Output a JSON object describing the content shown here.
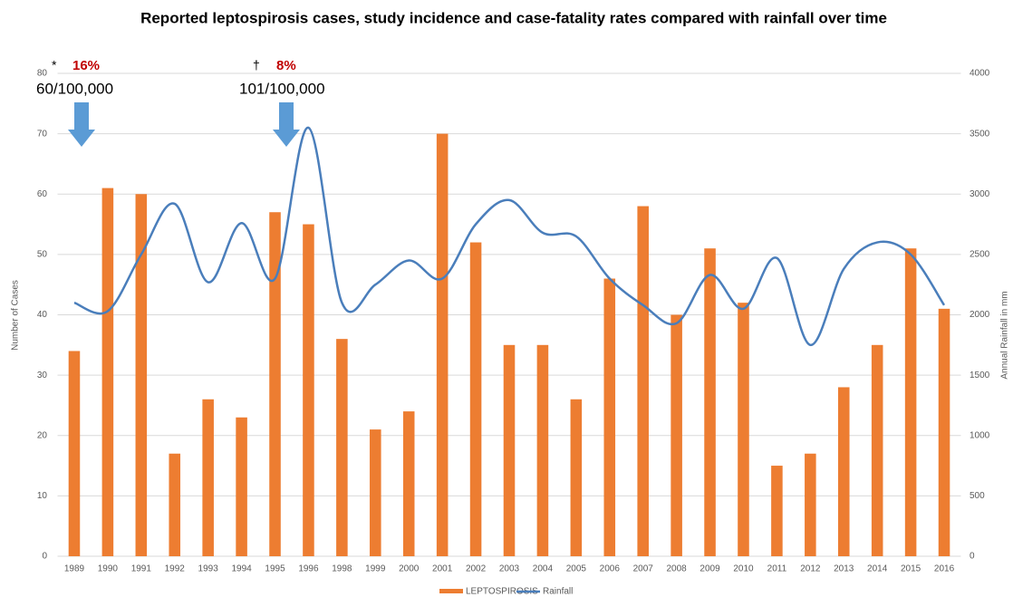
{
  "chart_data": {
    "type": "bar",
    "title": "Reported leptospirosis cases, study incidence and case-fatality rates compared with rainfall over time",
    "ylabel": "Number of Cases",
    "y2label": "Annual Rainfall in mm",
    "categories": [
      "1989",
      "1990",
      "1991",
      "1992",
      "1993",
      "1994",
      "1995",
      "1996",
      "1998",
      "1999",
      "2000",
      "2001",
      "2002",
      "2003",
      "2004",
      "2005",
      "2006",
      "2007",
      "2008",
      "2009",
      "2010",
      "2011",
      "2012",
      "2013",
      "2014",
      "2015",
      "2016"
    ],
    "series": [
      {
        "name": "LEPTOSPIROSIS",
        "type": "bar",
        "color": "#ed7d31",
        "values": [
          34,
          61,
          60,
          17,
          26,
          23,
          57,
          55,
          36,
          21,
          24,
          70,
          52,
          35,
          35,
          26,
          46,
          58,
          40,
          51,
          42,
          15,
          17,
          28,
          35,
          51,
          41
        ]
      },
      {
        "name": "Rainfall",
        "type": "line",
        "color": "#4a7ebb",
        "axis": "y2",
        "values": [
          2100,
          2030,
          2500,
          2920,
          2270,
          2760,
          2300,
          3550,
          2100,
          2250,
          2450,
          2300,
          2750,
          2950,
          2680,
          2650,
          2300,
          2080,
          1930,
          2330,
          2050,
          2470,
          1750,
          2380,
          2600,
          2500,
          2080
        ]
      }
    ],
    "ylim": [
      0,
      80
    ],
    "yticks": [
      0,
      10,
      20,
      30,
      40,
      50,
      60,
      70,
      80
    ],
    "y2lim": [
      0,
      4000
    ],
    "y2ticks": [
      0,
      500,
      1000,
      1500,
      2000,
      2500,
      3000,
      3500,
      4000
    ],
    "grid": true,
    "legend": "bottom",
    "annotations": [
      {
        "symbol": "*",
        "rate": "16%",
        "incidence": "60/100,000"
      },
      {
        "symbol": "†",
        "rate": "8%",
        "incidence": "101/100,000"
      }
    ]
  }
}
